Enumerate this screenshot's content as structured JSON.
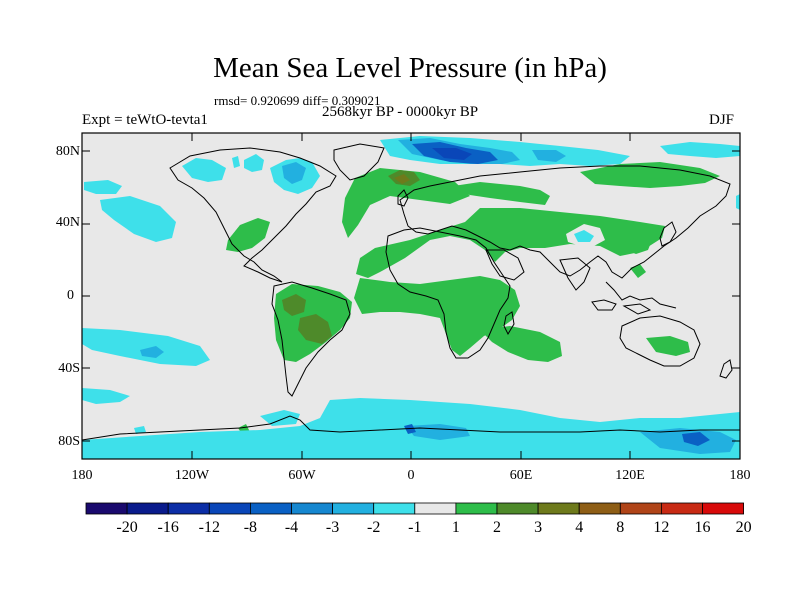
{
  "header": {
    "title": "Mean Sea Level Pressure (in hPa)",
    "stats": "rmsd= 0.920699 diff= 0.309021",
    "period": "2568kyr BP - 0000kyr BP",
    "experiment": "Expt = teWtO-tevta1",
    "season": "DJF"
  },
  "axes": {
    "lat_labels": [
      "80N",
      "40N",
      "0",
      "40S",
      "80S"
    ],
    "lon_labels": [
      "180",
      "120W",
      "60W",
      "0",
      "60E",
      "120E",
      "180"
    ]
  },
  "colorbar": {
    "labels": [
      "-20",
      "-16",
      "-12",
      "-8",
      "-4",
      "-3",
      "-2",
      "-1",
      "1",
      "2",
      "3",
      "4",
      "8",
      "12",
      "16",
      "20"
    ],
    "colors": [
      "#1a0a6e",
      "#0a1b8c",
      "#0c2ea6",
      "#0a46b8",
      "#0a60c4",
      "#1687d0",
      "#22b0e0",
      "#3ee0ea",
      "#e8e8e8",
      "#2ebd4a",
      "#4e8a2a",
      "#6e7a1c",
      "#8e5e16",
      "#b04418",
      "#c82a14",
      "#d80a0a"
    ]
  },
  "palette": {
    "background": "#e8e8e8",
    "positive_weak": "#2ebd4a",
    "positive_mid": "#4e8a2a",
    "positive_strong": "#6e7a1c",
    "negative_weak": "#3ee0ea",
    "negative_mid": "#22b0e0",
    "negative_strong": "#0a60c4",
    "negative_max": "#0a46b8",
    "coast": "#000000"
  }
}
